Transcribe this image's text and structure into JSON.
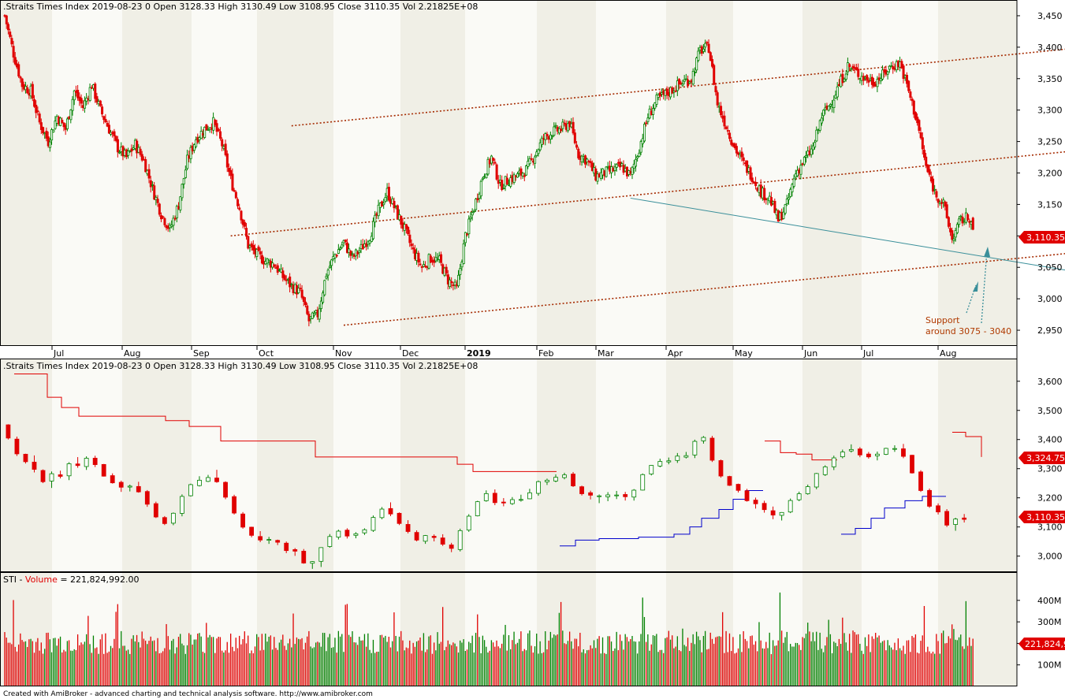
{
  "app": {
    "footer": "Created with AmiBroker - advanced charting and technical analysis software. http://www.amibroker.com"
  },
  "colors": {
    "up": "#008000",
    "down": "#e00000",
    "trend": "#a52a00",
    "line": "#3a8f9a",
    "blue": "#0000cc",
    "band_a": "#f0efe6",
    "band_b": "#fafaf6"
  },
  "panes": {
    "price": {
      "title": ".Straits Times Index   2019-08-23  0  Open 3128.33  High 3130.49  Low 3108.95  Close 3110.35  Vol 2.21825E+08",
      "ylim": [
        2925,
        3465
      ],
      "yticks": [
        "2,950",
        "3,000",
        "3,050",
        "3,100",
        "3,150",
        "3,200",
        "3,250",
        "3,300",
        "3,350",
        "3,400",
        "3,450"
      ],
      "last_tag": "3,110.35"
    },
    "weekly": {
      "title": ".Straits Times Index   2019-08-23  0  Open 3128.33  High 3130.49  Low 3108.95  Close 3110.35  Vol 2.21825E+08",
      "ylim": [
        2945,
        3640
      ],
      "yticks": [
        "3,000",
        "3,100",
        "3,200",
        "3,300",
        "3,400",
        "3,500",
        "3,600"
      ],
      "tag_red": "3,324.75",
      "tag_last": "3,110.35"
    },
    "volume": {
      "title_prefix": "STI - ",
      "title_label": "Volume",
      "title_value": " = 221,824,992.00",
      "ylim": [
        0,
        480
      ],
      "yticks": [
        "100M",
        "200M",
        "300M",
        "400M"
      ],
      "last_tag": "221,824,9"
    }
  },
  "xaxis": {
    "labels": [
      "Jul",
      "Aug",
      "Sep",
      "Oct",
      "Nov",
      "Dec",
      "2019",
      "Feb",
      "Mar",
      "Apr",
      "May",
      "Jun",
      "Jul",
      "Aug"
    ]
  },
  "annotation": {
    "line1": "Support",
    "line2": "around 3075 - 3040"
  },
  "chart_data": {
    "type": "candlestick",
    "title": ".Straits Times Index",
    "last_bar": {
      "date": "2019-08-23",
      "open": 3128.33,
      "high": 3130.49,
      "low": 3108.95,
      "close": 3110.35,
      "volume": 221825000
    },
    "price_anchors": [
      [
        0,
        3450
      ],
      [
        5,
        3390
      ],
      [
        10,
        3340
      ],
      [
        15,
        3330
      ],
      [
        20,
        3280
      ],
      [
        25,
        3250
      ],
      [
        30,
        3290
      ],
      [
        35,
        3270
      ],
      [
        40,
        3330
      ],
      [
        45,
        3305
      ],
      [
        50,
        3340
      ],
      [
        55,
        3300
      ],
      [
        60,
        3270
      ],
      [
        65,
        3240
      ],
      [
        70,
        3225
      ],
      [
        75,
        3245
      ],
      [
        80,
        3220
      ],
      [
        85,
        3175
      ],
      [
        90,
        3135
      ],
      [
        95,
        3110
      ],
      [
        100,
        3150
      ],
      [
        105,
        3220
      ],
      [
        110,
        3255
      ],
      [
        115,
        3270
      ],
      [
        120,
        3280
      ],
      [
        125,
        3245
      ],
      [
        130,
        3190
      ],
      [
        135,
        3145
      ],
      [
        140,
        3085
      ],
      [
        145,
        3070
      ],
      [
        150,
        3060
      ],
      [
        155,
        3055
      ],
      [
        160,
        3035
      ],
      [
        165,
        3020
      ],
      [
        170,
        3010
      ],
      [
        175,
        2965
      ],
      [
        180,
        2975
      ],
      [
        185,
        3040
      ],
      [
        190,
        3070
      ],
      [
        195,
        3090
      ],
      [
        200,
        3065
      ],
      [
        205,
        3080
      ],
      [
        210,
        3100
      ],
      [
        215,
        3140
      ],
      [
        220,
        3170
      ],
      [
        225,
        3140
      ],
      [
        230,
        3110
      ],
      [
        235,
        3075
      ],
      [
        240,
        3050
      ],
      [
        245,
        3065
      ],
      [
        250,
        3060
      ],
      [
        255,
        3030
      ],
      [
        260,
        3015
      ],
      [
        265,
        3100
      ],
      [
        270,
        3145
      ],
      [
        275,
        3195
      ],
      [
        280,
        3225
      ],
      [
        285,
        3180
      ],
      [
        290,
        3190
      ],
      [
        295,
        3195
      ],
      [
        300,
        3205
      ],
      [
        305,
        3230
      ],
      [
        310,
        3255
      ],
      [
        315,
        3265
      ],
      [
        320,
        3270
      ],
      [
        325,
        3280
      ],
      [
        330,
        3230
      ],
      [
        335,
        3220
      ],
      [
        340,
        3195
      ],
      [
        345,
        3200
      ],
      [
        350,
        3205
      ],
      [
        355,
        3210
      ],
      [
        360,
        3195
      ],
      [
        365,
        3240
      ],
      [
        370,
        3290
      ],
      [
        375,
        3315
      ],
      [
        380,
        3325
      ],
      [
        385,
        3335
      ],
      [
        390,
        3345
      ],
      [
        395,
        3350
      ],
      [
        400,
        3395
      ],
      [
        405,
        3400
      ],
      [
        410,
        3310
      ],
      [
        415,
        3275
      ],
      [
        420,
        3240
      ],
      [
        425,
        3215
      ],
      [
        430,
        3195
      ],
      [
        435,
        3170
      ],
      [
        440,
        3160
      ],
      [
        445,
        3125
      ],
      [
        450,
        3150
      ],
      [
        455,
        3200
      ],
      [
        460,
        3220
      ],
      [
        465,
        3240
      ],
      [
        470,
        3290
      ],
      [
        475,
        3310
      ],
      [
        480,
        3340
      ],
      [
        485,
        3370
      ],
      [
        490,
        3360
      ],
      [
        495,
        3350
      ],
      [
        500,
        3345
      ],
      [
        505,
        3355
      ],
      [
        510,
        3370
      ],
      [
        515,
        3375
      ],
      [
        520,
        3330
      ],
      [
        525,
        3280
      ],
      [
        530,
        3210
      ],
      [
        535,
        3170
      ],
      [
        540,
        3150
      ],
      [
        545,
        3095
      ],
      [
        550,
        3125
      ],
      [
        555,
        3130
      ],
      [
        557,
        3110
      ]
    ],
    "channels": [
      {
        "name": "upper",
        "from": [
          165,
          3275
        ],
        "to": [
          640,
          3405
        ]
      },
      {
        "name": "middle",
        "from": [
          130,
          3100
        ],
        "to": [
          640,
          3242
        ]
      },
      {
        "name": "lower",
        "from": [
          195,
          2958
        ],
        "to": [
          640,
          3080
        ]
      }
    ],
    "support_line": {
      "from": [
        360,
        3160
      ],
      "to": [
        640,
        3032
      ]
    },
    "volume_ylim": [
      0,
      480
    ]
  }
}
